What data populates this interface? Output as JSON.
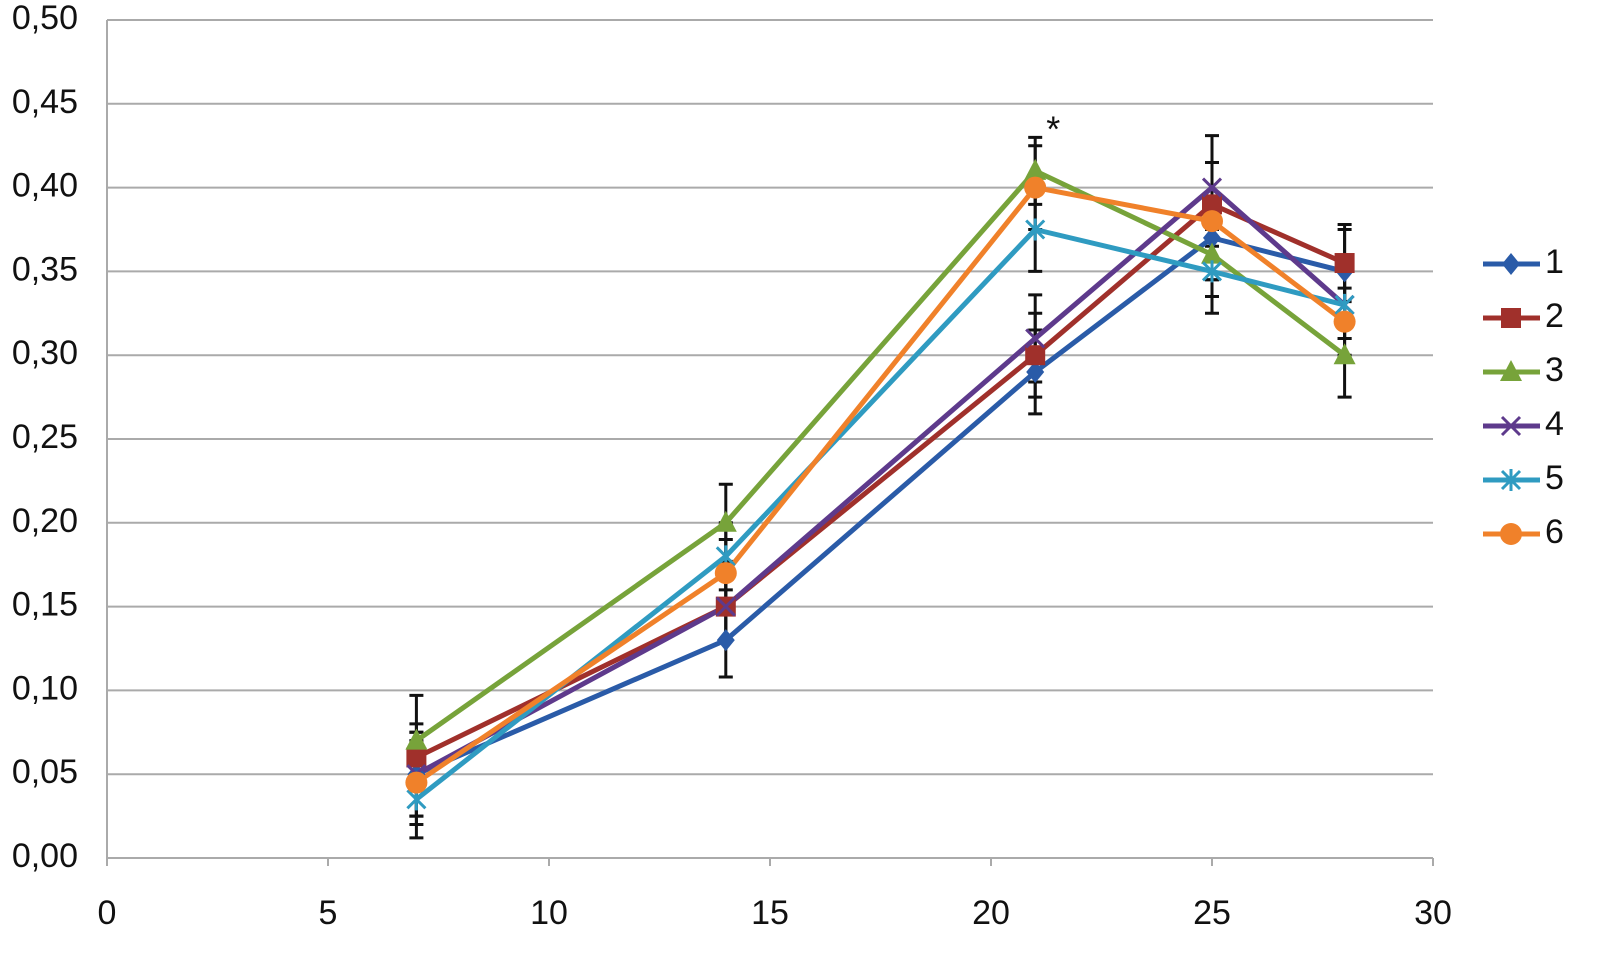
{
  "chart_data": {
    "type": "line",
    "x": [
      7,
      14,
      21,
      25,
      28
    ],
    "series": [
      {
        "name": "1",
        "color": "#2a5ba8",
        "marker": "diamond",
        "values": [
          0.05,
          0.13,
          0.29,
          0.37,
          0.35
        ],
        "errors": [
          0.025,
          0.022,
          0.025,
          0.025,
          0.025
        ]
      },
      {
        "name": "2",
        "color": "#a0302b",
        "marker": "square",
        "values": [
          0.06,
          0.15,
          0.3,
          0.39,
          0.355
        ],
        "errors": [
          0.02,
          0.02,
          0.025,
          0.025,
          0.023
        ]
      },
      {
        "name": "3",
        "color": "#77a33a",
        "marker": "triangle",
        "values": [
          0.07,
          0.2,
          0.41,
          0.36,
          0.3
        ],
        "errors": [
          0.027,
          0.023,
          0.02,
          0.025,
          0.025
        ]
      },
      {
        "name": "4",
        "color": "#5e3a8c",
        "marker": "x",
        "values": [
          0.05,
          0.15,
          0.31,
          0.4,
          0.33
        ],
        "errors": [
          0.025,
          0.02,
          0.026,
          0.031,
          0.02
        ]
      },
      {
        "name": "5",
        "color": "#2f9bc1",
        "marker": "star",
        "values": [
          0.035,
          0.18,
          0.375,
          0.35,
          0.33
        ],
        "errors": [
          0.023,
          0.02,
          0.025,
          0.025,
          0.02
        ]
      },
      {
        "name": "6",
        "color": "#f0812a",
        "marker": "circle",
        "values": [
          0.045,
          0.17,
          0.4,
          0.38,
          0.32
        ],
        "errors": [
          0.025,
          0.02,
          0.025,
          0.035,
          0.02
        ]
      }
    ],
    "annotations": [
      "*"
    ],
    "xlim": [
      0,
      30
    ],
    "xticks": [
      0,
      5,
      10,
      15,
      20,
      25,
      30
    ],
    "ylim": [
      0,
      0.5
    ],
    "yticks": [
      {
        "value": 0,
        "label": "0,00"
      },
      {
        "value": 0.05,
        "label": "0,05"
      },
      {
        "value": 0.1,
        "label": "0,10"
      },
      {
        "value": 0.15,
        "label": "0,15"
      },
      {
        "value": 0.2,
        "label": "0,20"
      },
      {
        "value": 0.25,
        "label": "0,25"
      },
      {
        "value": 0.3,
        "label": "0,30"
      },
      {
        "value": 0.35,
        "label": "0,35"
      },
      {
        "value": 0.4,
        "label": "0,40"
      },
      {
        "value": 0.45,
        "label": "0,45"
      },
      {
        "value": 0.5,
        "label": "0,50"
      }
    ],
    "grid": true,
    "legend": "right"
  }
}
